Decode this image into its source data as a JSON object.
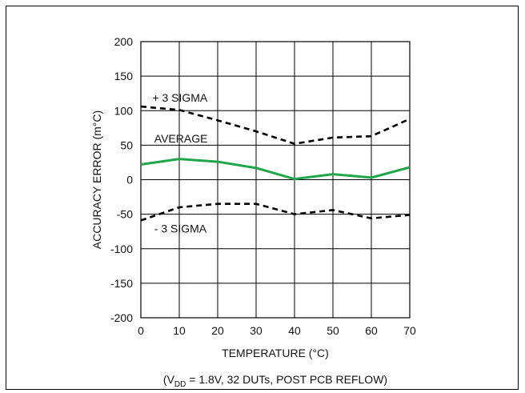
{
  "chart_data": {
    "type": "line",
    "title": "",
    "xlabel": "TEMPERATURE (°C)",
    "ylabel": "ACCURACY ERROR (m°C)",
    "footnote": {
      "prefix": "(V",
      "subscript": "DD",
      "suffix": " = 1.8V, 32 DUTs, POST PCB REFLOW)"
    },
    "xlim": [
      0,
      70
    ],
    "ylim": [
      -200,
      200
    ],
    "x_ticks": [
      0,
      10,
      20,
      30,
      40,
      50,
      60,
      70
    ],
    "y_ticks": [
      200,
      150,
      100,
      50,
      0,
      -50,
      -100,
      -150,
      -200
    ],
    "grid": true,
    "x": [
      0,
      10,
      20,
      30,
      40,
      50,
      60,
      70
    ],
    "series": [
      {
        "name": "+ 3 SIGMA",
        "style": "dashed",
        "color": "#000000",
        "values": [
          106,
          101,
          86,
          70,
          52,
          61,
          63,
          88
        ]
      },
      {
        "name": "AVERAGE",
        "style": "solid",
        "color": "#1fa64a",
        "values": [
          22,
          30,
          26,
          17,
          1,
          8,
          3,
          18
        ]
      },
      {
        "name": "- 3 SIGMA",
        "style": "dashed",
        "color": "#000000",
        "values": [
          -59,
          -40,
          -35,
          -35,
          -50,
          -44,
          -56,
          -51
        ]
      }
    ],
    "annotations": [
      {
        "text": "+ 3 SIGMA",
        "x": 3,
        "y": 119
      },
      {
        "text": "AVERAGE",
        "x": 3.5,
        "y": 60
      },
      {
        "text": "- 3 SIGMA",
        "x": 3.5,
        "y": -71
      }
    ]
  }
}
